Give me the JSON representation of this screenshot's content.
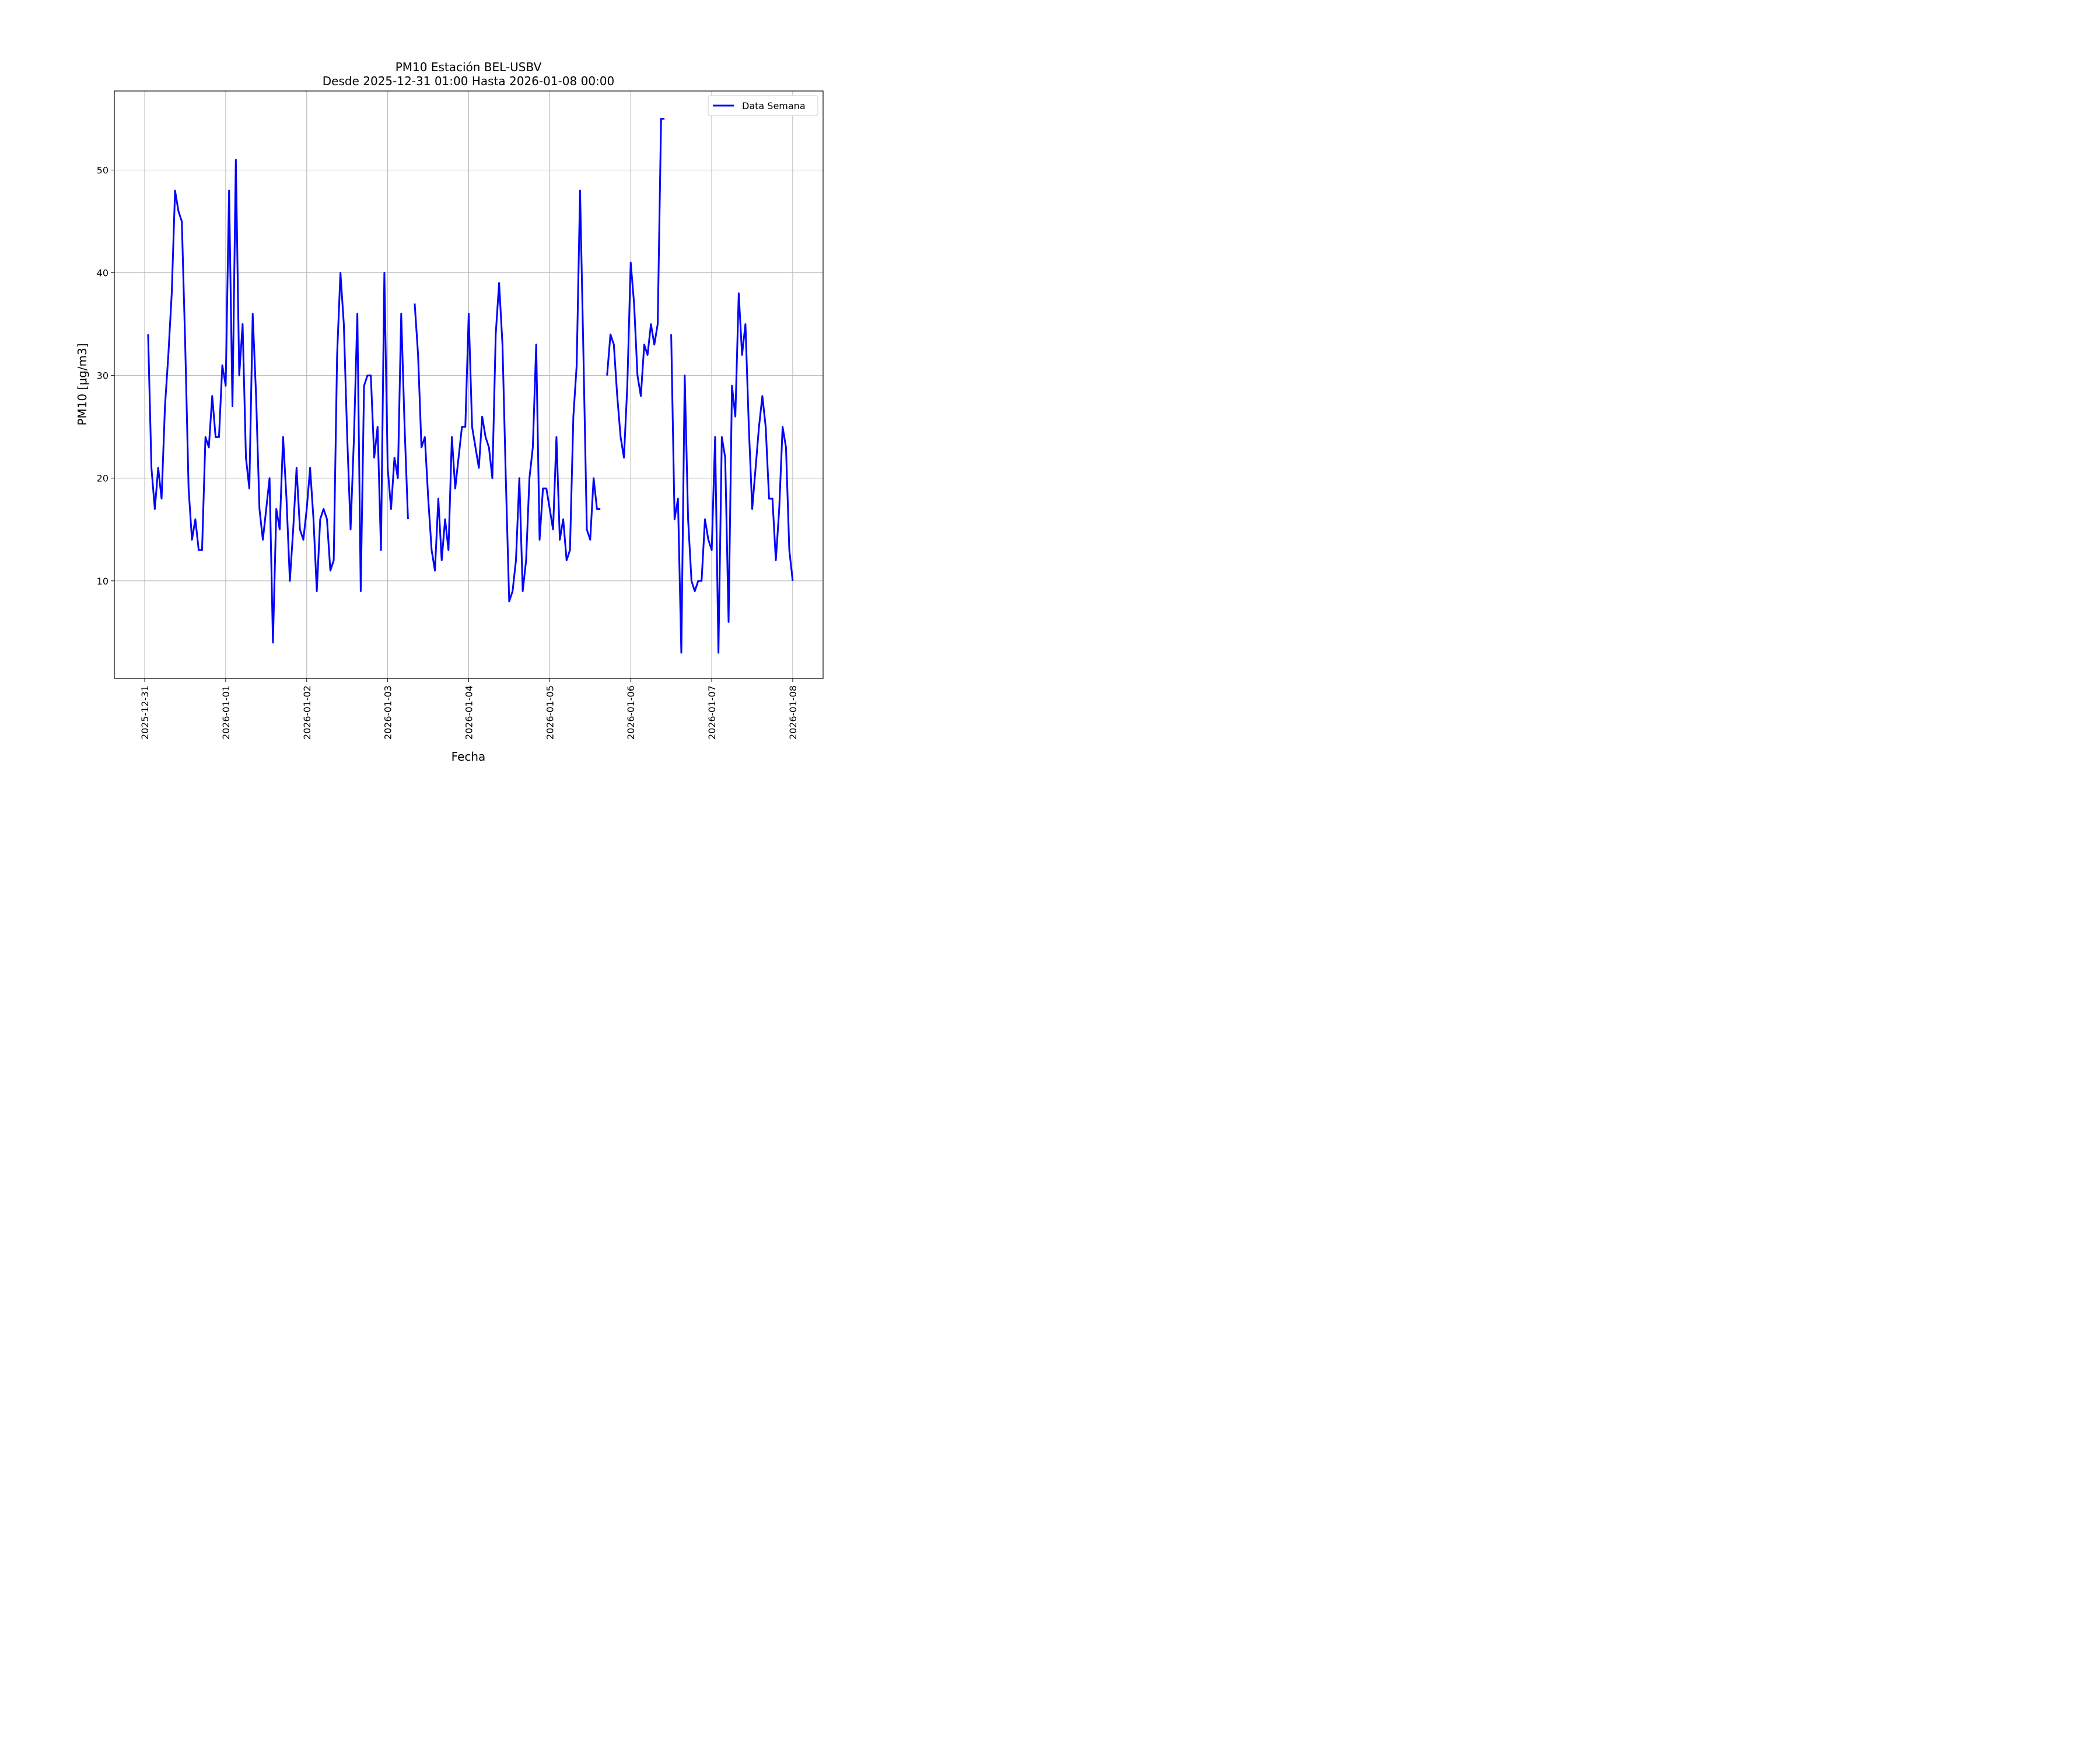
{
  "chart_data": {
    "type": "line",
    "title": "PM10 Estación BEL-USBV",
    "subtitle": "Desde 2025-12-31 01:00 Hasta 2026-01-08 00:00",
    "xlabel": "Fecha",
    "ylabel": "PM10 [μg/m3]",
    "x_range": [
      "2025-12-30T15:00",
      "2026-01-08T09:00"
    ],
    "ylim": [
      0.5,
      57.7
    ],
    "x_ticks": [
      "2025-12-31",
      "2026-01-01",
      "2026-01-02",
      "2026-01-03",
      "2026-01-04",
      "2026-01-05",
      "2026-01-06",
      "2026-01-07",
      "2026-01-08"
    ],
    "y_ticks": [
      10,
      20,
      30,
      40,
      50
    ],
    "grid": true,
    "legend": {
      "placement": "top-right",
      "entries": [
        "Data Semana"
      ]
    },
    "colors": {
      "series": "#0000ff"
    },
    "series": [
      {
        "name": "Data Semana",
        "start": "2025-12-31T01:00",
        "step_hours": 1,
        "values": [
          34,
          21,
          17,
          21,
          18,
          27,
          32,
          38,
          48,
          46,
          45,
          33,
          19,
          14,
          16,
          13,
          13,
          24,
          23,
          28,
          24,
          24,
          31,
          29,
          48,
          27,
          51,
          30,
          35,
          22,
          19,
          36,
          28,
          17,
          14,
          17,
          20,
          4,
          17,
          15,
          24,
          18,
          10,
          15,
          21,
          15,
          14,
          17,
          21,
          16,
          9,
          16,
          17,
          16,
          11,
          12,
          32,
          40,
          35,
          24,
          15,
          24,
          36,
          9,
          29,
          30,
          30,
          22,
          25,
          13,
          40,
          21,
          17,
          22,
          20,
          36,
          25,
          16,
          null,
          37,
          32,
          23,
          24,
          18,
          13,
          11,
          18,
          12,
          16,
          13,
          24,
          19,
          22,
          25,
          25,
          36,
          25,
          23,
          21,
          26,
          24,
          23,
          20,
          34,
          39,
          33,
          20,
          8,
          9,
          12,
          20,
          9,
          12,
          20,
          23,
          33,
          14,
          19,
          19,
          17,
          15,
          24,
          14,
          16,
          12,
          13,
          26,
          31,
          48,
          32,
          15,
          14,
          20,
          17,
          17,
          null,
          30,
          34,
          33,
          28,
          24,
          22,
          29,
          41,
          37,
          30,
          28,
          33,
          32,
          35,
          33,
          35,
          55,
          55,
          null,
          34,
          16,
          18,
          3,
          30,
          16,
          10,
          9,
          10,
          10,
          16,
          14,
          13,
          24,
          3,
          24,
          22,
          6,
          29,
          26,
          38,
          32,
          35,
          25,
          17,
          21,
          25,
          28,
          25,
          18,
          18,
          12,
          17,
          25,
          23,
          13,
          10
        ]
      }
    ]
  }
}
